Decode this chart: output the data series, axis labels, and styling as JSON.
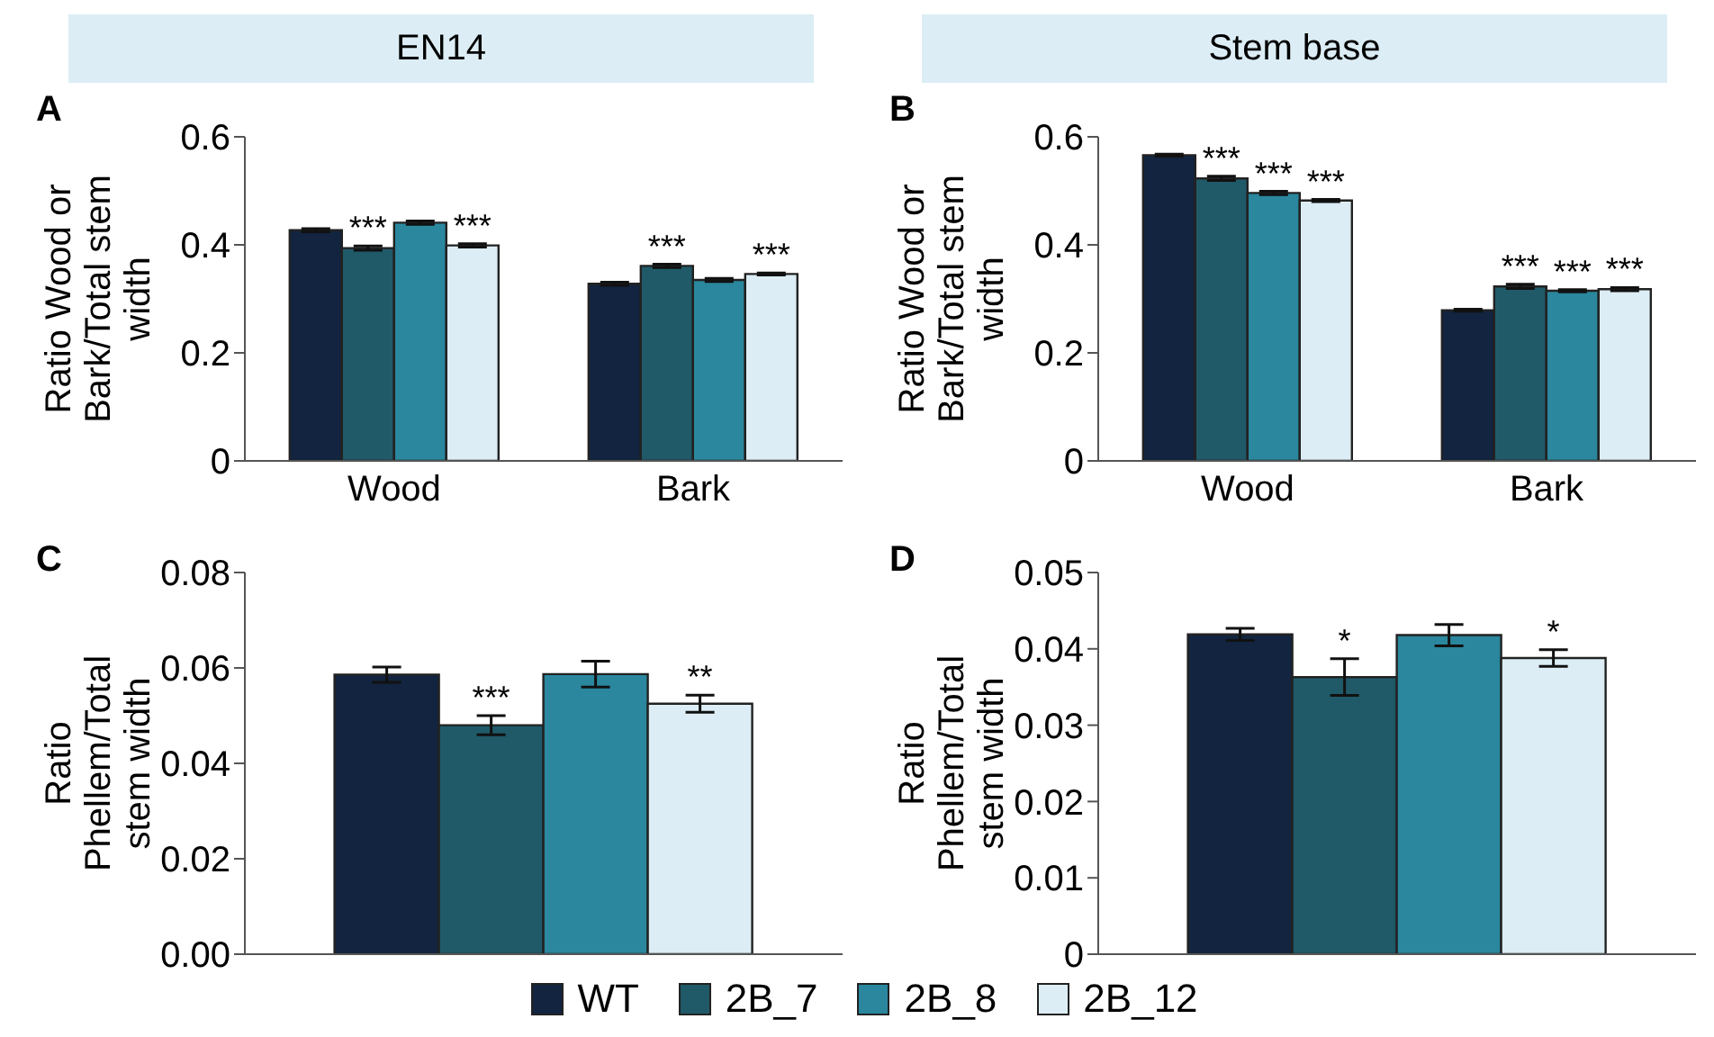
{
  "chart_data": [
    {
      "type": "bar",
      "title": "EN14",
      "annotations": [
        "A"
      ],
      "ylabel": "Ratio Wood or Bark/Total stem width",
      "categories": [
        "Wood",
        "Bark"
      ],
      "ylim": [
        0,
        0.6
      ],
      "yticks": [
        0,
        0.2,
        0.4,
        0.6
      ],
      "grid": false,
      "legend": false,
      "series": [
        {
          "color": "#12243f",
          "values": [
            0.427,
            0.328
          ],
          "errors": [
            0.003,
            0.003
          ]
        },
        {
          "color": "#205a68",
          "values": [
            0.394,
            0.361
          ],
          "errors": [
            0.004,
            0.003
          ],
          "value_labels": [
            "***",
            "***"
          ]
        },
        {
          "color": "#2a879e",
          "values": [
            0.441,
            0.335
          ],
          "errors": [
            0.003,
            0.003
          ]
        },
        {
          "color": "#dcedf5",
          "values": [
            0.399,
            0.346
          ],
          "errors": [
            0.003,
            0.002
          ],
          "value_labels": [
            "***",
            "***"
          ]
        }
      ]
    },
    {
      "type": "bar",
      "title": "Stem base",
      "annotations": [
        "B"
      ],
      "ylabel": "Ratio Wood or Bark/Total stem width",
      "categories": [
        "Wood",
        "Bark"
      ],
      "ylim": [
        0,
        0.6
      ],
      "yticks": [
        0,
        0.2,
        0.4,
        0.6
      ],
      "grid": false,
      "legend": false,
      "series": [
        {
          "color": "#12243f",
          "values": [
            0.566,
            0.279
          ],
          "errors": [
            0.002,
            0.002
          ]
        },
        {
          "color": "#205a68",
          "values": [
            0.523,
            0.323
          ],
          "errors": [
            0.004,
            0.004
          ],
          "value_labels": [
            "***",
            "***"
          ]
        },
        {
          "color": "#2a879e",
          "values": [
            0.496,
            0.315
          ],
          "errors": [
            0.003,
            0.002
          ],
          "value_labels": [
            "***",
            "***"
          ]
        },
        {
          "color": "#dcedf5",
          "values": [
            0.482,
            0.318
          ],
          "errors": [
            0.002,
            0.003
          ],
          "value_labels": [
            "***",
            "***"
          ]
        }
      ]
    },
    {
      "type": "bar",
      "annotations": [
        "C"
      ],
      "ylabel": "Ratio Phellem/Total stem width",
      "categories": [
        null
      ],
      "ylim": [
        0,
        0.08
      ],
      "yticks": [
        {
          "value": 0,
          "label": "0.00"
        },
        {
          "value": 0.02,
          "label": "0.02"
        },
        {
          "value": 0.04,
          "label": "0.04"
        },
        {
          "value": 0.06,
          "label": "0.06"
        },
        {
          "value": 0.08,
          "label": "0.08"
        }
      ],
      "grid": false,
      "legend": false,
      "series": [
        {
          "color": "#12243f",
          "values": [
            0.0586
          ],
          "errors": [
            0.0016
          ]
        },
        {
          "color": "#205a68",
          "values": [
            0.048
          ],
          "errors": [
            0.002
          ],
          "value_labels": [
            "***"
          ]
        },
        {
          "color": "#2a879e",
          "values": [
            0.0587
          ],
          "errors": [
            0.0027
          ]
        },
        {
          "color": "#dcedf5",
          "values": [
            0.0525
          ],
          "errors": [
            0.0018
          ],
          "value_labels": [
            "**"
          ]
        }
      ]
    },
    {
      "type": "bar",
      "annotations": [
        "D"
      ],
      "ylabel": "Ratio Phellem/Total stem width",
      "categories": [
        null
      ],
      "ylim": [
        0,
        0.05
      ],
      "yticks": [
        0,
        0.01,
        0.02,
        0.03,
        0.04,
        0.05
      ],
      "grid": false,
      "legend": "bottom",
      "series": [
        {
          "name": "WT",
          "color": "#12243f",
          "values": [
            0.0419
          ],
          "errors": [
            0.0008
          ]
        },
        {
          "name": "2B_7",
          "color": "#205a68",
          "values": [
            0.0363
          ],
          "errors": [
            0.0024
          ],
          "value_labels": [
            "*"
          ]
        },
        {
          "name": "2B_8",
          "color": "#2a879e",
          "values": [
            0.0418
          ],
          "errors": [
            0.0014
          ]
        },
        {
          "name": "2B_12",
          "color": "#dcedf5",
          "values": [
            0.0388
          ],
          "errors": [
            0.0011
          ],
          "value_labels": [
            "*"
          ]
        }
      ]
    }
  ]
}
